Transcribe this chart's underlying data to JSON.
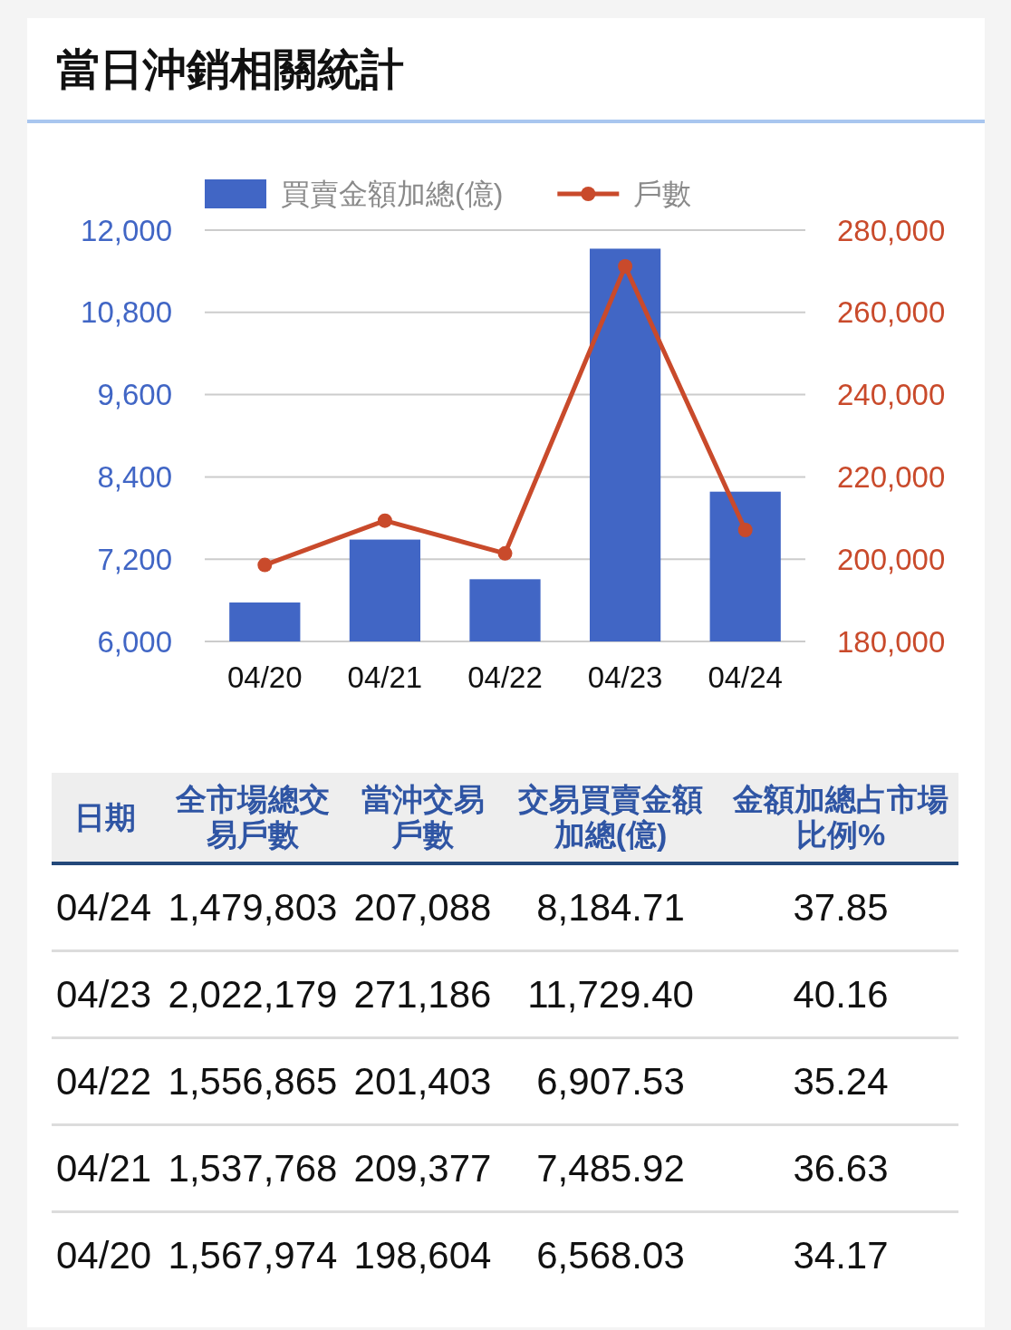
{
  "chart_data": [
    {
      "type": "bar",
      "title": "當日沖銷相關統計",
      "categories": [
        "04/20",
        "04/21",
        "04/22",
        "04/23",
        "04/24"
      ],
      "series": [
        {
          "name": "買賣金額加總(億)",
          "type": "bar",
          "color": "#4166c5",
          "values": [
            6568.03,
            7485.92,
            6907.53,
            11729.4,
            8184.71
          ]
        },
        {
          "name": "戶數",
          "type": "line",
          "axis": "y2",
          "color": "#c94a2b",
          "values": [
            198604,
            209377,
            201403,
            271186,
            207088
          ]
        }
      ],
      "ylim": [
        6000,
        12000
      ],
      "yticks": [
        {
          "value": 6000,
          "label": "6,000"
        },
        {
          "value": 7200,
          "label": "7,200"
        },
        {
          "value": 8400,
          "label": "8,400"
        },
        {
          "value": 9600,
          "label": "9,600"
        },
        {
          "value": 10800,
          "label": "10,800"
        },
        {
          "value": 12000,
          "label": "12,000"
        }
      ],
      "y2lim": [
        180000,
        280000
      ],
      "y2ticks": [
        {
          "value": 180000,
          "label": "180,000"
        },
        {
          "value": 200000,
          "label": "200,000"
        },
        {
          "value": 220000,
          "label": "220,000"
        },
        {
          "value": 240000,
          "label": "240,000"
        },
        {
          "value": 260000,
          "label": "260,000"
        },
        {
          "value": 280000,
          "label": "280,000"
        }
      ],
      "grid": "y",
      "legend": "top",
      "marker": "circle"
    },
    {
      "type": "other",
      "xlabel": "日期",
      "categories": [
        "04/24",
        "04/23",
        "04/22",
        "04/21",
        "04/20"
      ],
      "data_labels": true,
      "series": [
        {
          "name": "全市場總交易戶數",
          "values": [
            1479803,
            2022179,
            1556865,
            1537768,
            1567974
          ],
          "value_labels": [
            "1,479,803",
            "2,022,179",
            "1,556,865",
            "1,537,768",
            "1,567,974"
          ]
        },
        {
          "name": "當沖交易戶數",
          "values": [
            207088,
            271186,
            201403,
            209377,
            198604
          ],
          "value_labels": [
            "207,088",
            "271,186",
            "201,403",
            "209,377",
            "198,604"
          ]
        },
        {
          "name": "交易買賣金額加總(億)",
          "values": [
            8184.71,
            11729.4,
            6907.53,
            7485.92,
            6568.03
          ],
          "value_labels": [
            "8,184.71",
            "11,729.40",
            "6,907.53",
            "7,485.92",
            "6,568.03"
          ]
        },
        {
          "name": "金額加總占市場比例%",
          "values": [
            37.85,
            40.16,
            35.24,
            36.63,
            34.17
          ]
        }
      ]
    }
  ]
}
